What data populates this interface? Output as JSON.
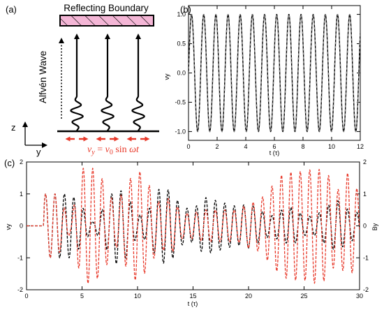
{
  "panel_a": {
    "label": "(a)",
    "boundary_label": "Reflecting Boundary",
    "wave_label": "Alfvén Wave",
    "axis_z": "z",
    "axis_y": "y",
    "formula": {
      "lhs_v": "v",
      "lhs_sub": "y",
      "eq": " = ",
      "rhs_v": "v",
      "rhs_sub": "0",
      "rhs_fn": " sin ",
      "rhs_arg": "ωt"
    },
    "colors": {
      "boundary_fill": "#f4b6d6",
      "arrow_red": "#e8392a",
      "formula_red": "#e8392a"
    }
  },
  "chart_data": [
    {
      "panel": "(b)",
      "type": "line",
      "title": "",
      "xlabel": "t (τ)",
      "ylabel": "vy",
      "xlim": [
        0,
        12
      ],
      "ylim": [
        -1.15,
        1.15
      ],
      "x_ticks": [
        "0",
        "2",
        "4",
        "6",
        "8",
        "10",
        "12"
      ],
      "y_ticks": [
        "1.0",
        "0.5",
        "0.0",
        "-0.5",
        "-1.0"
      ],
      "series": [
        {
          "style": "solid",
          "color": "#000000",
          "function": "sin(2*pi*t/0.85)",
          "samples": {
            "x": [
              0,
              0.2125,
              0.425,
              0.6375,
              0.85
            ],
            "y": [
              0.0,
              1.0,
              0.0,
              -1.0,
              0.0
            ]
          }
        },
        {
          "style": "dashed",
          "color": "#000000",
          "function": "sin(2*pi*t/0.85)",
          "samples": {
            "x": [
              0,
              0.2125,
              0.425,
              0.6375,
              0.85
            ],
            "y": [
              0.0,
              1.0,
              0.0,
              -1.0,
              0.0
            ]
          }
        }
      ],
      "period": 0.85,
      "grid": false
    },
    {
      "panel": "(c)",
      "type": "line",
      "title": "",
      "xlabel": "t (τ)",
      "ylabel_left": "vy",
      "ylabel_right": "By",
      "xlim": [
        0,
        30
      ],
      "ylim_left": [
        -2,
        2
      ],
      "ylim_right": [
        -2,
        2
      ],
      "x_ticks": [
        "0",
        "5",
        "10",
        "15",
        "20",
        "25",
        "30"
      ],
      "y_ticks_left": [
        "2",
        "1",
        "0",
        "-1",
        "-2"
      ],
      "y_ticks_right": [
        "2",
        "1",
        "0",
        "-1",
        "-2"
      ],
      "series": [
        {
          "color": "#000000",
          "style": "dashed",
          "axis": "left",
          "t_onset": 1.5,
          "period": 0.85,
          "envelope": {
            "t": [
              0,
              1.5,
              1.6,
              2.7,
              4.0,
              5.0,
              6.0,
              7.0,
              8.0,
              9.0,
              10.0,
              11.0,
              12.0,
              13.0,
              14.0,
              15.0,
              16.0,
              17.0,
              18.0,
              19.0,
              20.0,
              21.0,
              22.0,
              23.0,
              24.0,
              25.0,
              26.0,
              27.0,
              28.0,
              29.0,
              30.0
            ],
            "a": [
              0,
              0,
              1.0,
              1.0,
              1.0,
              0.6,
              0.1,
              0.6,
              1.2,
              1.0,
              0.3,
              0.5,
              1.2,
              1.1,
              0.6,
              0.5,
              0.9,
              0.8,
              0.7,
              0.6,
              0.7,
              0.5,
              0.3,
              0.5,
              0.6,
              0.3,
              0.3,
              0.6,
              0.8,
              0.5,
              0.4
            ]
          }
        },
        {
          "color": "#e8392a",
          "style": "dashed",
          "axis": "right",
          "t_onset": 1.5,
          "period": 0.85,
          "envelope": {
            "t": [
              0,
              1.5,
              1.6,
              2.7,
              4.0,
              5.0,
              6.0,
              7.0,
              8.0,
              9.0,
              10.0,
              11.0,
              12.0,
              13.0,
              14.0,
              15.0,
              16.0,
              17.0,
              18.0,
              19.0,
              20.0,
              21.0,
              22.0,
              23.0,
              24.0,
              25.0,
              26.0,
              27.0,
              28.0,
              29.0,
              30.0
            ],
            "a": [
              0,
              0,
              1.0,
              1.0,
              0.2,
              1.8,
              1.8,
              1.4,
              0.6,
              1.3,
              1.8,
              1.3,
              0.7,
              0.9,
              0.4,
              0.4,
              0.5,
              0.5,
              0.5,
              0.5,
              0.7,
              0.8,
              1.2,
              1.6,
              1.7,
              1.7,
              1.8,
              1.7,
              1.1,
              1.7,
              1.0
            ]
          }
        }
      ],
      "grid": false
    }
  ]
}
